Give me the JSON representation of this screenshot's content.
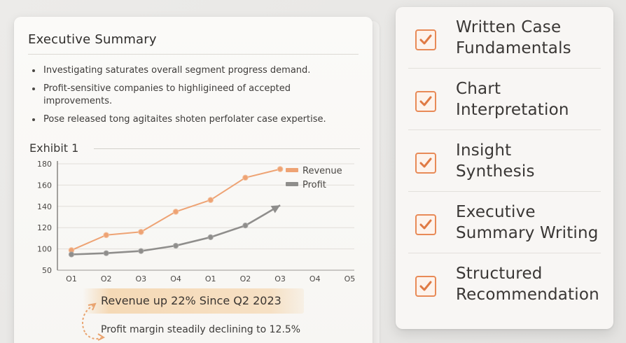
{
  "summary": {
    "title": "Executive Summary",
    "bullets": [
      "Investigating saturates overall segment progress demand.",
      "Profit-sensitive companies to highligineed of accepted improvements.",
      "Pose released tong agitaites shoten perfolater case expertise."
    ]
  },
  "exhibit": {
    "title": "Exhibit 1"
  },
  "chart_data": {
    "type": "line",
    "categories": [
      "Q1",
      "Q2",
      "Q3",
      "Q4",
      "Q1",
      "Q2",
      "Q3",
      "Q4",
      "Q5"
    ],
    "yticks": [
      50,
      100,
      120,
      140,
      160,
      180
    ],
    "ylim": [
      50,
      180
    ],
    "grid": true,
    "legend_placement": "top-right",
    "series": [
      {
        "name": "Revenue",
        "color": "#eea374",
        "values": [
          97,
          113,
          116,
          135,
          146,
          167,
          175,
          null,
          null
        ]
      },
      {
        "name": "Profit",
        "color": "#8f8e8c",
        "values": [
          87,
          90,
          95,
          103,
          111,
          122,
          141,
          null,
          null
        ]
      }
    ]
  },
  "callout": {
    "headline": "Revenue up 22% Since Q2 2023",
    "subline": "Profit margin steadily declining to 12.5%"
  },
  "checklist": {
    "accent": "#e88a57",
    "items": [
      {
        "label": "Written Case\nFundamentals",
        "checked": true
      },
      {
        "label": "Chart\nInterpretation",
        "checked": true
      },
      {
        "label": "Insight\nSynthesis",
        "checked": true
      },
      {
        "label": "Executive\nSummary Writing",
        "checked": true
      },
      {
        "label": "Structured\nRecommendation",
        "checked": true
      }
    ]
  }
}
